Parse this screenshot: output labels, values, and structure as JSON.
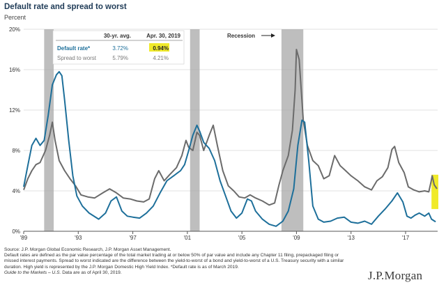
{
  "title": "Default rate and spread to worst",
  "subtitle": "Percent",
  "notes": {
    "source": "Source: J.P. Morgan Global Economic Research, J.P. Morgan Asset Management.",
    "definition": "Default rates are defined as the par value percentage of the total market trading at or below 50% of par value and include any Chapter 11 filing, prepackaged filing or missed interest payments. Spread to worst indicated are the difference between the yield-to-worst of a bond and yield-to-worst of a U.S. Treasury security with a similar duration. High yield is represented by the J.P. Morgan Domestic High Yield Index. *Default rate is as of March 2019.",
    "guide": "Guide to the Markets – U.S.",
    "data_date": "Data are as of April 30, 2019."
  },
  "logo": "J.P.Morgan",
  "colors": {
    "default_rate": "#1d6f9a",
    "spread_to_worst": "#6b6b6b",
    "recession": "#a8a8a8",
    "highlight": "#f0ea2a",
    "title": "#1f3b57"
  },
  "chart_data": {
    "type": "line",
    "title": "Default rate and spread to worst",
    "ylabel": "Percent",
    "ylim": [
      0,
      20
    ],
    "xlim": [
      1989.0,
      2019.35
    ],
    "y_ticks": [
      0,
      4,
      8,
      12,
      16,
      20
    ],
    "y_tick_labels": [
      "0%",
      "4%",
      "8%",
      "12%",
      "16%",
      "20%"
    ],
    "x_ticks": [
      1989,
      1993,
      1997,
      2001,
      2005,
      2009,
      2013,
      2017
    ],
    "x_tick_labels": [
      "'89",
      "'93",
      "'97",
      "'01",
      "'05",
      "'09",
      "'13",
      "'17"
    ],
    "grid": "horizontal",
    "annotation": "Recession",
    "recessions": [
      {
        "start": 1990.5,
        "end": 1991.2
      },
      {
        "start": 2001.2,
        "end": 2001.9
      },
      {
        "start": 2007.9,
        "end": 2009.5
      }
    ],
    "table": {
      "headers": [
        "",
        "30-yr. avg.",
        "Apr. 30, 2019"
      ],
      "rows": [
        {
          "label": "Default rate*",
          "avg": "3.72%",
          "current": "0.94%"
        },
        {
          "label": "Spread to worst",
          "avg": "5.79%",
          "current": "4.21%"
        }
      ]
    },
    "series": [
      {
        "name": "Default rate*",
        "color": "#1d6f9a",
        "points": [
          [
            1989.0,
            4.4
          ],
          [
            1989.3,
            6.5
          ],
          [
            1989.6,
            8.5
          ],
          [
            1989.9,
            9.2
          ],
          [
            1990.2,
            8.5
          ],
          [
            1990.5,
            9.0
          ],
          [
            1990.8,
            11.5
          ],
          [
            1991.1,
            14.5
          ],
          [
            1991.4,
            15.5
          ],
          [
            1991.6,
            15.8
          ],
          [
            1991.8,
            15.4
          ],
          [
            1992.0,
            13.0
          ],
          [
            1992.3,
            9.0
          ],
          [
            1992.6,
            5.5
          ],
          [
            1992.9,
            3.5
          ],
          [
            1993.3,
            2.5
          ],
          [
            1993.8,
            1.8
          ],
          [
            1994.5,
            1.2
          ],
          [
            1995.0,
            1.8
          ],
          [
            1995.4,
            3.0
          ],
          [
            1995.8,
            3.4
          ],
          [
            1996.2,
            2.0
          ],
          [
            1996.6,
            1.5
          ],
          [
            1997.0,
            1.4
          ],
          [
            1997.5,
            1.3
          ],
          [
            1998.0,
            1.8
          ],
          [
            1998.5,
            2.5
          ],
          [
            1999.0,
            3.8
          ],
          [
            1999.5,
            5.0
          ],
          [
            2000.0,
            5.5
          ],
          [
            2000.5,
            6.0
          ],
          [
            2000.8,
            6.6
          ],
          [
            2001.1,
            8.0
          ],
          [
            2001.4,
            9.5
          ],
          [
            2001.7,
            10.5
          ],
          [
            2001.9,
            9.9
          ],
          [
            2002.2,
            8.8
          ],
          [
            2002.6,
            8.2
          ],
          [
            2003.0,
            7.0
          ],
          [
            2003.4,
            5.0
          ],
          [
            2003.8,
            3.5
          ],
          [
            2004.2,
            2.0
          ],
          [
            2004.6,
            1.3
          ],
          [
            2005.0,
            1.8
          ],
          [
            2005.4,
            3.2
          ],
          [
            2005.7,
            3.0
          ],
          [
            2006.0,
            2.0
          ],
          [
            2006.5,
            1.2
          ],
          [
            2007.0,
            0.7
          ],
          [
            2007.5,
            0.5
          ],
          [
            2008.0,
            1.0
          ],
          [
            2008.4,
            2.0
          ],
          [
            2008.8,
            4.2
          ],
          [
            2009.1,
            8.5
          ],
          [
            2009.4,
            11.0
          ],
          [
            2009.6,
            10.8
          ],
          [
            2009.9,
            7.0
          ],
          [
            2010.2,
            2.5
          ],
          [
            2010.6,
            1.2
          ],
          [
            2011.0,
            0.9
          ],
          [
            2011.5,
            1.0
          ],
          [
            2012.0,
            1.3
          ],
          [
            2012.5,
            1.4
          ],
          [
            2013.0,
            0.9
          ],
          [
            2013.5,
            0.8
          ],
          [
            2014.0,
            1.0
          ],
          [
            2014.5,
            0.7
          ],
          [
            2015.0,
            1.5
          ],
          [
            2015.5,
            2.2
          ],
          [
            2016.0,
            3.0
          ],
          [
            2016.4,
            3.8
          ],
          [
            2016.8,
            2.9
          ],
          [
            2017.1,
            1.5
          ],
          [
            2017.4,
            1.3
          ],
          [
            2017.7,
            1.6
          ],
          [
            2018.0,
            1.8
          ],
          [
            2018.4,
            1.5
          ],
          [
            2018.7,
            1.8
          ],
          [
            2018.9,
            1.2
          ],
          [
            2019.2,
            0.94
          ]
        ]
      },
      {
        "name": "Spread to worst",
        "color": "#6b6b6b",
        "points": [
          [
            1989.0,
            4.1
          ],
          [
            1989.3,
            5.2
          ],
          [
            1989.6,
            6.0
          ],
          [
            1989.9,
            6.6
          ],
          [
            1990.2,
            6.8
          ],
          [
            1990.6,
            8.0
          ],
          [
            1990.9,
            9.5
          ],
          [
            1991.1,
            10.8
          ],
          [
            1991.3,
            9.0
          ],
          [
            1991.6,
            7.0
          ],
          [
            1992.0,
            6.0
          ],
          [
            1992.4,
            5.2
          ],
          [
            1992.8,
            4.5
          ],
          [
            1993.2,
            3.6
          ],
          [
            1993.7,
            3.4
          ],
          [
            1994.2,
            3.3
          ],
          [
            1994.8,
            3.8
          ],
          [
            1995.3,
            4.2
          ],
          [
            1995.8,
            3.8
          ],
          [
            1996.3,
            3.3
          ],
          [
            1996.8,
            3.2
          ],
          [
            1997.3,
            3.0
          ],
          [
            1997.8,
            2.9
          ],
          [
            1998.2,
            3.2
          ],
          [
            1998.6,
            5.2
          ],
          [
            1998.9,
            6.0
          ],
          [
            1999.3,
            5.0
          ],
          [
            1999.7,
            5.6
          ],
          [
            2000.2,
            6.3
          ],
          [
            2000.6,
            7.5
          ],
          [
            2000.9,
            9.0
          ],
          [
            2001.1,
            8.3
          ],
          [
            2001.4,
            8.0
          ],
          [
            2001.7,
            9.8
          ],
          [
            2001.9,
            9.5
          ],
          [
            2002.2,
            8.0
          ],
          [
            2002.6,
            9.5
          ],
          [
            2002.9,
            10.5
          ],
          [
            2003.2,
            8.5
          ],
          [
            2003.6,
            6.0
          ],
          [
            2004.0,
            4.5
          ],
          [
            2004.4,
            4.0
          ],
          [
            2004.8,
            3.4
          ],
          [
            2005.2,
            3.3
          ],
          [
            2005.6,
            3.6
          ],
          [
            2006.0,
            3.3
          ],
          [
            2006.5,
            3.0
          ],
          [
            2007.0,
            2.6
          ],
          [
            2007.4,
            2.8
          ],
          [
            2007.7,
            4.5
          ],
          [
            2008.0,
            6.0
          ],
          [
            2008.4,
            7.5
          ],
          [
            2008.7,
            10.0
          ],
          [
            2008.9,
            14.0
          ],
          [
            2009.0,
            18.0
          ],
          [
            2009.2,
            17.0
          ],
          [
            2009.5,
            11.0
          ],
          [
            2009.8,
            8.5
          ],
          [
            2010.2,
            7.0
          ],
          [
            2010.6,
            6.5
          ],
          [
            2011.0,
            5.2
          ],
          [
            2011.4,
            5.5
          ],
          [
            2011.8,
            7.5
          ],
          [
            2012.2,
            6.5
          ],
          [
            2012.6,
            6.0
          ],
          [
            2013.0,
            5.5
          ],
          [
            2013.5,
            5.0
          ],
          [
            2014.0,
            4.4
          ],
          [
            2014.5,
            4.1
          ],
          [
            2014.9,
            5.0
          ],
          [
            2015.3,
            5.4
          ],
          [
            2015.7,
            6.3
          ],
          [
            2016.0,
            8.1
          ],
          [
            2016.2,
            8.4
          ],
          [
            2016.5,
            6.8
          ],
          [
            2016.9,
            5.8
          ],
          [
            2017.2,
            4.4
          ],
          [
            2017.6,
            4.1
          ],
          [
            2018.0,
            3.9
          ],
          [
            2018.4,
            4.0
          ],
          [
            2018.7,
            3.9
          ],
          [
            2018.85,
            4.8
          ],
          [
            2018.95,
            5.5
          ],
          [
            2019.1,
            4.6
          ],
          [
            2019.3,
            4.21
          ]
        ]
      }
    ]
  }
}
